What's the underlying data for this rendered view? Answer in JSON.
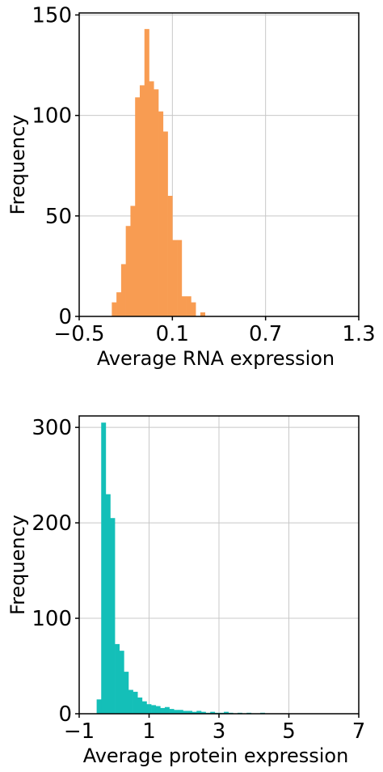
{
  "chart_data": [
    {
      "type": "histogram",
      "xlabel": "Average RNA expression",
      "ylabel": "Frequency",
      "color": "#f89c52",
      "bins": [
        -0.29,
        -0.26,
        -0.23,
        -0.2,
        -0.17,
        -0.14,
        -0.11,
        -0.08,
        -0.05,
        -0.02,
        0.01,
        0.04,
        0.07,
        0.1,
        0.13,
        0.16,
        0.19,
        0.22,
        0.25,
        0.28,
        0.31
      ],
      "values": [
        7,
        12,
        26,
        45,
        55,
        109,
        115,
        143,
        117,
        113,
        102,
        92,
        60,
        38,
        38,
        10,
        10,
        7,
        0,
        2
      ],
      "xlim": [
        -0.5,
        1.3
      ],
      "ylim": [
        0,
        151
      ],
      "xticks": [
        {
          "value": -0.5,
          "label": "−0.5"
        },
        0.1,
        0.7,
        1.3
      ],
      "yticks": [
        0,
        50,
        100,
        150
      ],
      "grid": true
    },
    {
      "type": "histogram",
      "xlabel": "Average protein expression",
      "ylabel": "Frequency",
      "color": "#14bfb8",
      "bins": [
        -0.5,
        -0.37,
        -0.24,
        -0.11,
        0.02,
        0.15,
        0.28,
        0.41,
        0.54,
        0.67,
        0.8,
        0.93,
        1.06,
        1.19,
        1.32,
        1.45,
        1.58,
        1.71,
        1.84,
        1.97,
        2.1,
        2.23,
        2.36,
        2.49,
        2.62,
        2.75,
        2.88,
        3.01,
        3.14,
        3.27,
        3.4,
        3.53,
        3.66,
        3.79,
        3.92,
        4.05,
        4.18,
        4.31
      ],
      "values": [
        15,
        305,
        230,
        205,
        73,
        66,
        44,
        25,
        23,
        17,
        13,
        10,
        9,
        8,
        6,
        7,
        5,
        4,
        4,
        3,
        3,
        2,
        3,
        2,
        1,
        2,
        1,
        1,
        2,
        1,
        0,
        1,
        0,
        1,
        0,
        0,
        1
      ],
      "xlim": [
        -1,
        7
      ],
      "ylim": [
        0,
        312
      ],
      "xticks": [
        {
          "value": -1,
          "label": "−1"
        },
        1,
        3,
        5,
        7
      ],
      "yticks": [
        0,
        100,
        200,
        300
      ],
      "grid": true
    }
  ]
}
